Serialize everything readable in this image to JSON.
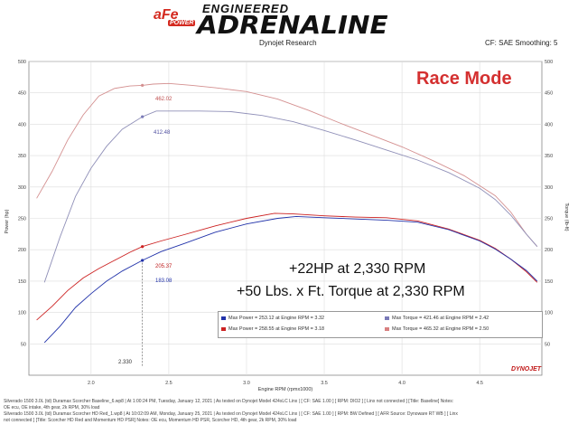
{
  "brand": {
    "afe": "aFe",
    "power": "POWER",
    "engineered": "ENGINEERED",
    "adrenaline": "ADRENALINE"
  },
  "header": {
    "source": "Dynojet Research",
    "settings": "CF: SAE Smoothing: 5"
  },
  "annotations": {
    "race_mode": "Race Mode",
    "hp_gain": "+22HP at 2,330 RPM",
    "tq_gain": "+50 Lbs. x Ft. Torque at 2,330 RPM",
    "label_462": "462.02",
    "label_412": "412.48",
    "label_205": "205.37",
    "label_183": "183.08",
    "label_2330": "2.330"
  },
  "legend": [
    {
      "text": "Max Power = 253.12 at Engine RPM = 3.32",
      "color": "#2233aa"
    },
    {
      "text": "Max Torque = 421.46 at Engine RPM = 2.42",
      "color": "#7a7ab8"
    },
    {
      "text": "Max Power = 258.55 at Engine RPM = 3.18",
      "color": "#cc2222"
    },
    {
      "text": "Max Torque = 465.32 at Engine RPM = 2.50",
      "color": "#d88080"
    }
  ],
  "footnotes": [
    "Silverado 1500 3.0L (td) Duramax Scorcher Baseline_6.wp8 | At 1:00:24 PM, Tuesday, January 12, 2021 | As tested on Dynojet Model 424xLC Linx | [ CF: SAE 1.00 ] [ RPM: DIO2 ] [ Linx not connected ] [Title: Baseline] Notes:",
    "OE ecu, OE intake, 4th gear, 2k RPM, 30% load",
    "Silverado 1500 3.0L (td) Duramax Scorcher HD Red_1.wp8 | At 10:02:09 AM, Monday, January 25, 2021 | As tested on Dynojet Model 424xLC Linx | [ CF: SAE 1.00 ] [ RPM: BW Defined ] [ AFR Source: Dynoware RT WB ] [ Linx",
    "not connected ] [Title: Scorcher HD Red and Momentum HD PSR] Notes: OE ecu, Momentum HD PSR, Scorcher HD, 4th gear, 2k RPM, 30% load"
  ],
  "logo": {
    "dynojet": "DYNOJET"
  },
  "chart_data": {
    "type": "line",
    "xlabel": "Engine RPM (rpmx1000)",
    "ylabel_left": "Power (hp)",
    "ylabel_right": "Torque (lb-ft)",
    "xlim": [
      1.6,
      4.9
    ],
    "ylim": [
      0,
      500
    ],
    "x_ticks": [
      2.0,
      2.5,
      3.0,
      3.5,
      4.0,
      4.5
    ],
    "x_tick_labels": [
      "2.0",
      "2.5",
      "3.0",
      "3.5",
      "4.0",
      "4.5"
    ],
    "y_ticks": [
      50,
      100,
      150,
      200,
      250,
      300,
      350,
      400,
      450,
      500
    ],
    "y_tick_labels": [
      "50",
      "100",
      "150",
      "200",
      "250",
      "300",
      "350",
      "400",
      "450",
      "500"
    ],
    "series": [
      {
        "color": "#d49090",
        "points": [
          [
            1.65,
            282
          ],
          [
            1.75,
            325
          ],
          [
            1.85,
            375
          ],
          [
            1.95,
            415
          ],
          [
            2.05,
            445
          ],
          [
            2.15,
            457
          ],
          [
            2.25,
            461
          ],
          [
            2.33,
            462
          ],
          [
            2.4,
            464
          ],
          [
            2.5,
            465
          ],
          [
            2.65,
            462
          ],
          [
            2.8,
            458
          ],
          [
            3.0,
            452
          ],
          [
            3.2,
            440
          ],
          [
            3.4,
            422
          ],
          [
            3.6,
            402
          ],
          [
            3.8,
            383
          ],
          [
            4.0,
            364
          ],
          [
            4.2,
            342
          ],
          [
            4.4,
            318
          ],
          [
            4.6,
            286
          ],
          [
            4.7,
            260
          ],
          [
            4.8,
            225
          ],
          [
            4.87,
            205
          ]
        ]
      },
      {
        "color": "#9090b8",
        "points": [
          [
            1.7,
            148
          ],
          [
            1.8,
            220
          ],
          [
            1.9,
            285
          ],
          [
            2.0,
            330
          ],
          [
            2.1,
            365
          ],
          [
            2.2,
            392
          ],
          [
            2.33,
            412
          ],
          [
            2.42,
            421
          ],
          [
            2.5,
            421
          ],
          [
            2.7,
            421
          ],
          [
            2.9,
            420
          ],
          [
            3.1,
            414
          ],
          [
            3.3,
            404
          ],
          [
            3.5,
            390
          ],
          [
            3.7,
            375
          ],
          [
            3.9,
            359
          ],
          [
            4.1,
            343
          ],
          [
            4.3,
            323
          ],
          [
            4.5,
            298
          ],
          [
            4.6,
            280
          ],
          [
            4.7,
            255
          ],
          [
            4.8,
            225
          ],
          [
            4.87,
            205
          ]
        ]
      },
      {
        "color": "#cc2222",
        "points": [
          [
            1.65,
            88
          ],
          [
            1.75,
            110
          ],
          [
            1.85,
            135
          ],
          [
            1.95,
            155
          ],
          [
            2.05,
            170
          ],
          [
            2.15,
            183
          ],
          [
            2.25,
            196
          ],
          [
            2.33,
            205
          ],
          [
            2.45,
            214
          ],
          [
            2.6,
            224
          ],
          [
            2.8,
            238
          ],
          [
            3.0,
            250
          ],
          [
            3.18,
            258
          ],
          [
            3.3,
            257
          ],
          [
            3.5,
            254
          ],
          [
            3.7,
            252
          ],
          [
            3.9,
            251
          ],
          [
            4.1,
            246
          ],
          [
            4.3,
            233
          ],
          [
            4.5,
            215
          ],
          [
            4.6,
            202
          ],
          [
            4.7,
            185
          ],
          [
            4.8,
            165
          ],
          [
            4.87,
            148
          ]
        ]
      },
      {
        "color": "#2233aa",
        "points": [
          [
            1.7,
            52
          ],
          [
            1.8,
            78
          ],
          [
            1.9,
            108
          ],
          [
            2.0,
            130
          ],
          [
            2.1,
            150
          ],
          [
            2.2,
            166
          ],
          [
            2.33,
            183
          ],
          [
            2.45,
            197
          ],
          [
            2.6,
            210
          ],
          [
            2.8,
            228
          ],
          [
            3.0,
            241
          ],
          [
            3.2,
            250
          ],
          [
            3.32,
            253
          ],
          [
            3.5,
            251
          ],
          [
            3.7,
            249
          ],
          [
            3.9,
            247
          ],
          [
            4.1,
            244
          ],
          [
            4.3,
            232
          ],
          [
            4.5,
            214
          ],
          [
            4.6,
            201
          ],
          [
            4.7,
            185
          ],
          [
            4.8,
            167
          ],
          [
            4.87,
            150
          ]
        ]
      }
    ]
  }
}
